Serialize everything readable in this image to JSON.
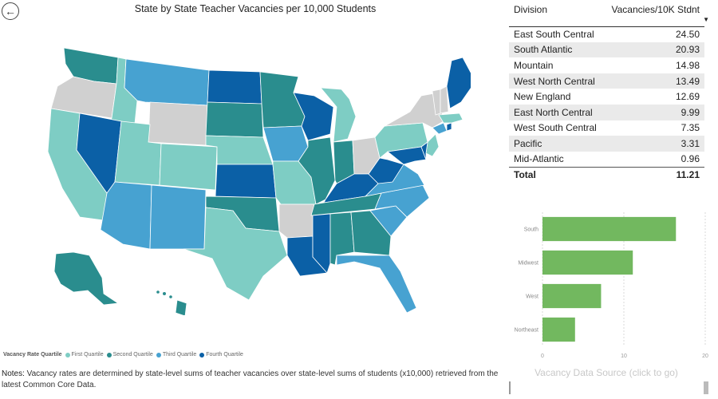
{
  "nav": {
    "back_icon": "back-arrow-icon"
  },
  "map": {
    "title": "State by State Teacher Vacancies per 10,000 Students",
    "colors": {
      "first": "#7ecdc4",
      "second": "#2a8d8e",
      "third": "#47a2d1",
      "fourth": "#0b60a6",
      "none": "#d0d0d0",
      "border": "#ffffff"
    },
    "legend": {
      "title": "Vacancy Rate Quartile",
      "items": [
        {
          "label": "First Quartile",
          "color": "#7ecdc4"
        },
        {
          "label": "Second Quartile",
          "color": "#2a8d8e"
        },
        {
          "label": "Third Quartile",
          "color": "#47a2d1"
        },
        {
          "label": "Fourth Quartile",
          "color": "#0b60a6"
        }
      ]
    }
  },
  "notes": {
    "label": "Notes:",
    "text": " Vacancy rates are determined by state-level sums of teacher vacancies over state-level sums of students (x10,000) retrieved from the latest Common Core Data."
  },
  "table": {
    "headers": {
      "division": "Division",
      "rate": "Vacancies/10K Stdnt"
    },
    "rows": [
      {
        "division": "East South Central",
        "rate": "24.50"
      },
      {
        "division": "South Atlantic",
        "rate": "20.93"
      },
      {
        "division": "Mountain",
        "rate": "14.98"
      },
      {
        "division": "West North Central",
        "rate": "13.49"
      },
      {
        "division": "New England",
        "rate": "12.69"
      },
      {
        "division": "East North Central",
        "rate": "9.99"
      },
      {
        "division": "West South Central",
        "rate": "7.35"
      },
      {
        "division": "Pacific",
        "rate": "3.31"
      },
      {
        "division": "Mid-Atlantic",
        "rate": "0.96"
      }
    ],
    "total": {
      "label": "Total",
      "rate": "11.21"
    }
  },
  "chart_data": {
    "type": "bar",
    "orientation": "horizontal",
    "categories": [
      "South",
      "Midwest",
      "West",
      "Northeast"
    ],
    "values": [
      16.4,
      11.1,
      7.2,
      4.0
    ],
    "xlim": [
      0,
      20
    ],
    "xticks": [
      "0",
      "10",
      "20"
    ],
    "bar_color": "#72b85f",
    "grid": true
  },
  "data_source": {
    "label": "Vacancy Data Source (click to go)"
  }
}
